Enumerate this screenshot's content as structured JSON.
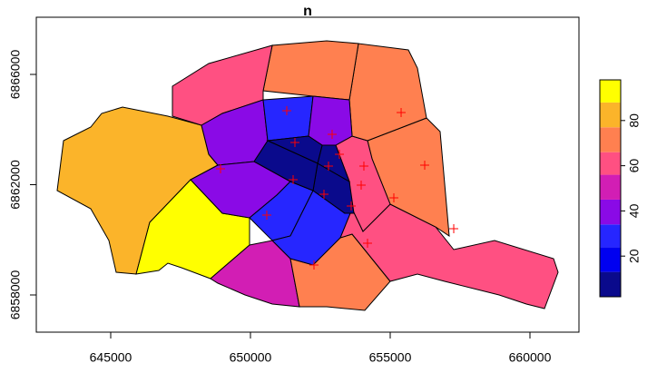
{
  "chart_data": {
    "type": "map",
    "title": "n",
    "regions": {
      "values": [
        85,
        95,
        50,
        68,
        58,
        70,
        60,
        70,
        70,
        60,
        35,
        33,
        45,
        35,
        28,
        32,
        12,
        12,
        8,
        10
      ]
    },
    "points": {
      "color": "#ff0000",
      "x": [
        651299,
        651591,
        652922,
        653182,
        652792,
        654058,
        653961,
        651526,
        648929,
        650584,
        652630,
        653604,
        652273,
        654188,
        655130,
        656234,
        655390,
        657273
      ],
      "y": [
        6864683,
        6863531,
        6863827,
        6863103,
        6862675,
        6862675,
        6861984,
        6862181,
        6862576,
        6860897,
        6861654,
        6861226,
        6859086,
        6859877,
        6861523,
        6862708,
        6864617,
        6860403
      ]
    },
    "xlim": [
      642338,
      661753
    ],
    "xticks": [
      645000,
      650000,
      655000,
      660000
    ],
    "ylim": [
      6856650,
      6868074
    ],
    "yticks": [
      6858000,
      6862000,
      6866000
    ],
    "colorbar": {
      "breaks": [
        2,
        13,
        24,
        34,
        45,
        56,
        66,
        77,
        88,
        98
      ],
      "colors": [
        "#0a0a8c",
        "#0000f0",
        "#2626ff",
        "#8a0ae6",
        "#d21eb4",
        "#ff5082",
        "#ff8050",
        "#fbb42a",
        "#ffff00"
      ],
      "ticks": [
        20,
        40,
        60,
        80
      ]
    }
  }
}
